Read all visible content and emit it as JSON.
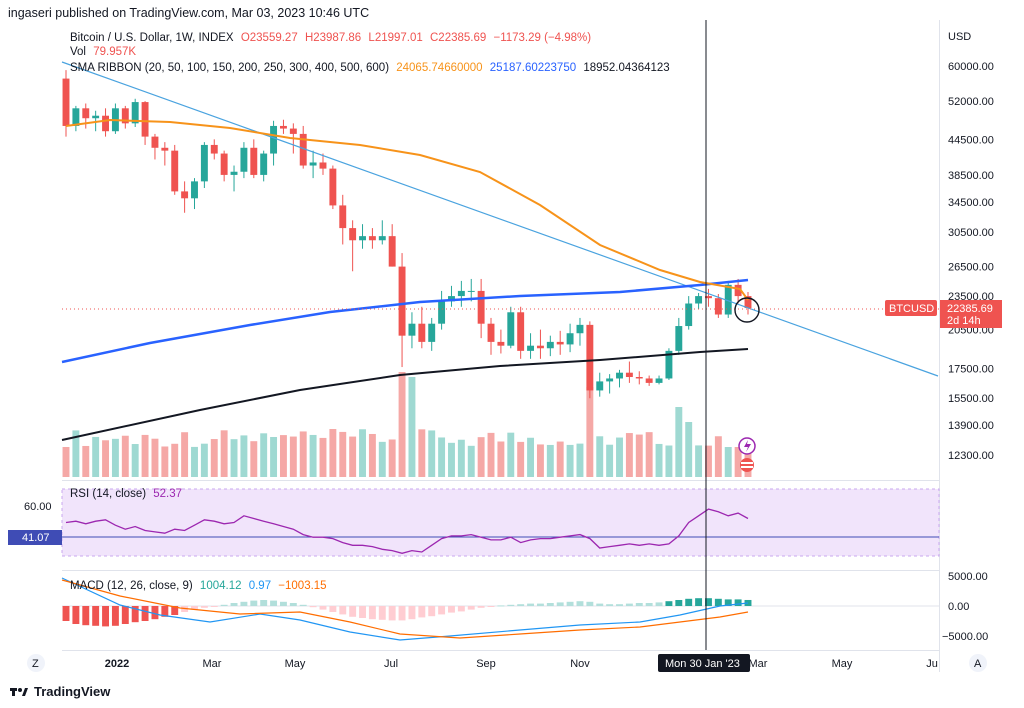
{
  "header": {
    "published": "ingaseri published on TradingView.com, Mar 03, 2023 10:46 UTC"
  },
  "legend": {
    "symbol": "Bitcoin / U.S. Dollar, 1W, INDEX",
    "open": "O23559.27",
    "high": "H23987.86",
    "low": "L21997.01",
    "close": "C22385.69",
    "change": "−1173.29 (−4.98%)",
    "vol_label": "Vol",
    "vol_value": "79.957K",
    "sma_label": "SMA RIBBON (20, 50, 100, 150, 200, 250, 300, 400, 500, 600)",
    "sma_v1": "24065.74660000",
    "sma_v2": "25187.60223750",
    "sma_v3": "18952.04364123"
  },
  "rsi_legend": {
    "label": "RSI (14, close)",
    "value": "52.37"
  },
  "macd_legend": {
    "label": "MACD (12, 26, close, 9)",
    "v1": "1004.12",
    "v2": "0.97",
    "v3": "−1003.15"
  },
  "price_axis": {
    "currency": "USD",
    "ticks": [
      "60000.00",
      "52000.00",
      "44500.00",
      "38500.00",
      "34500.00",
      "30500.00",
      "26500.00",
      "23500.00",
      "20500.00",
      "17500.00",
      "15500.00",
      "13900.00",
      "12300.00"
    ],
    "tag_symbol": "BTCUSD",
    "tag_price": "22385.69",
    "tag_time": "2d 14h"
  },
  "rsi_axis": {
    "ticks": [
      "60.00"
    ],
    "level_tag": "41.07"
  },
  "macd_axis": {
    "ticks": [
      "5000.00",
      "0.00",
      "−5000.00"
    ]
  },
  "time_axis": {
    "ticks": [
      "2022",
      "Mar",
      "May",
      "Jul",
      "Sep",
      "Nov",
      "Mar",
      "May",
      "Ju"
    ],
    "crosshair_label": "Mon 30 Jan '23",
    "left_button": "Z",
    "right_button": "A"
  },
  "footer": {
    "brand": "TradingView"
  },
  "colors": {
    "up": "#26a69a",
    "down": "#ef5350",
    "sma_orange": "#f7931a",
    "sma_blue": "#2962ff",
    "sma_black": "#131722",
    "trendline": "#4aa3df",
    "rsi": "#9c27b0",
    "rsi_band": "#f1e4fb"
  },
  "chart_data": {
    "type": "candlestick",
    "timeframe": "1W",
    "yscale": "log",
    "series": [
      {
        "name": "BTCUSD",
        "ohlc": [
          [
            57000,
            59000,
            45000,
            47000
          ],
          [
            47000,
            51000,
            46000,
            50500
          ],
          [
            50500,
            51500,
            46500,
            48500
          ],
          [
            48500,
            50000,
            46000,
            49000
          ],
          [
            49000,
            50500,
            45000,
            46000
          ],
          [
            46000,
            51500,
            45500,
            50500
          ],
          [
            50500,
            51000,
            46500,
            47500
          ],
          [
            47500,
            52500,
            46800,
            51800
          ],
          [
            51800,
            52000,
            43500,
            45000
          ],
          [
            45000,
            45500,
            41000,
            43000
          ],
          [
            43000,
            44000,
            40000,
            42500
          ],
          [
            42500,
            43500,
            35500,
            36000
          ],
          [
            36000,
            37500,
            33000,
            35000
          ],
          [
            35000,
            38000,
            33500,
            37500
          ],
          [
            37500,
            44000,
            36500,
            43500
          ],
          [
            43500,
            44500,
            41000,
            42000
          ],
          [
            42000,
            42500,
            37500,
            38500
          ],
          [
            38500,
            40000,
            36000,
            39000
          ],
          [
            39000,
            44000,
            38000,
            43000
          ],
          [
            43000,
            44500,
            38000,
            38500
          ],
          [
            38500,
            42500,
            37500,
            42000
          ],
          [
            42000,
            48000,
            40000,
            47000
          ],
          [
            47000,
            48200,
            45500,
            46500
          ],
          [
            46500,
            47500,
            42000,
            45500
          ],
          [
            45500,
            47000,
            39500,
            40000
          ],
          [
            40000,
            42500,
            38000,
            40500
          ],
          [
            40500,
            42000,
            38500,
            39500
          ],
          [
            39500,
            40000,
            33500,
            34000
          ],
          [
            34000,
            35500,
            29000,
            31000
          ],
          [
            31000,
            32000,
            26000,
            29500
          ],
          [
            29500,
            31500,
            28500,
            30000
          ],
          [
            30000,
            31000,
            28500,
            29500
          ],
          [
            29500,
            32000,
            29000,
            30000
          ],
          [
            30000,
            31500,
            26500,
            26500
          ],
          [
            26500,
            28000,
            17600,
            20000
          ],
          [
            20000,
            22000,
            19000,
            21000
          ],
          [
            21000,
            22500,
            19000,
            19500
          ],
          [
            19500,
            21500,
            18800,
            21000
          ],
          [
            21000,
            24000,
            20500,
            23000
          ],
          [
            23000,
            24500,
            22500,
            23500
          ],
          [
            23500,
            25000,
            22500,
            24000
          ],
          [
            24000,
            25200,
            23000,
            24000
          ],
          [
            24000,
            25200,
            19800,
            21000
          ],
          [
            21000,
            21500,
            18500,
            19500
          ],
          [
            19500,
            20500,
            18600,
            19200
          ],
          [
            19200,
            22500,
            19000,
            22000
          ],
          [
            22000,
            22500,
            18200,
            18800
          ],
          [
            18800,
            20200,
            18200,
            19200
          ],
          [
            19200,
            20500,
            18200,
            19000
          ],
          [
            19000,
            20000,
            18400,
            19500
          ],
          [
            19500,
            20400,
            18500,
            19300
          ],
          [
            19300,
            21000,
            18700,
            20200
          ],
          [
            20200,
            21500,
            19200,
            20900
          ],
          [
            20900,
            21200,
            15500,
            16000
          ],
          [
            16000,
            17200,
            15600,
            16600
          ],
          [
            16600,
            17100,
            15800,
            16800
          ],
          [
            16800,
            17400,
            16200,
            17200
          ],
          [
            17200,
            18000,
            16500,
            16900
          ],
          [
            16900,
            17300,
            16400,
            16800
          ],
          [
            16800,
            17000,
            16300,
            16500
          ],
          [
            16500,
            17000,
            16400,
            16800
          ],
          [
            16800,
            19000,
            16700,
            18800
          ],
          [
            18800,
            21500,
            18500,
            20800
          ],
          [
            20800,
            23500,
            20500,
            22800
          ],
          [
            22800,
            23800,
            22300,
            23500
          ],
          [
            23500,
            24200,
            22500,
            23300
          ],
          [
            23300,
            23700,
            21500,
            21800
          ],
          [
            21800,
            25000,
            21500,
            24600
          ],
          [
            24600,
            25200,
            22800,
            23500
          ],
          [
            23500,
            23900,
            21800,
            22385
          ]
        ]
      }
    ],
    "overlays": [
      "SMA 20 (orange)",
      "SMA 200 (blue)",
      "SMA 600 (black)",
      "trendline"
    ],
    "indicators": [
      "Volume",
      "RSI (14)",
      "MACD (12,26,9)"
    ]
  }
}
